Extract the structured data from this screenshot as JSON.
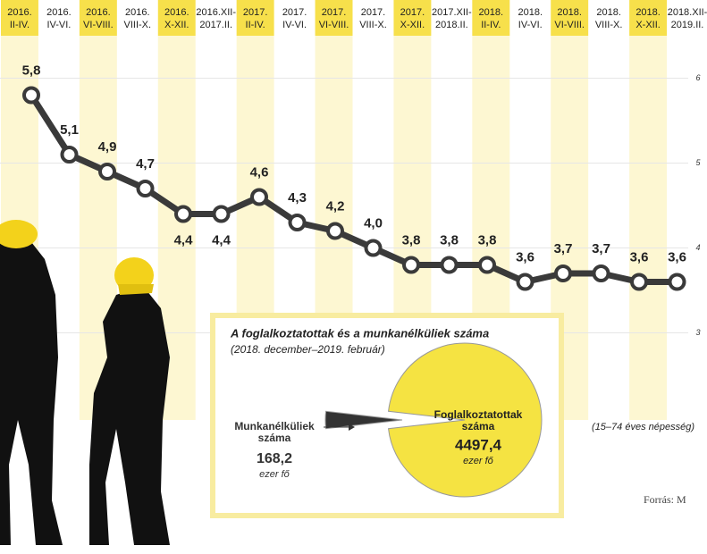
{
  "chart_data": [
    {
      "type": "line",
      "categories": [
        "2016. II-IV.",
        "2016. IV-VI.",
        "2016. VI-VIII.",
        "2016. VIII-X.",
        "2016. X-XII.",
        "2016.XII- 2017.II.",
        "2017. II-IV.",
        "2017. IV-VI.",
        "2017. VI-VIII.",
        "2017. VIII-X.",
        "2017. X-XII.",
        "2017.XII- 2018.II.",
        "2018. II-IV.",
        "2018. IV-VI.",
        "2018. VI-VIII.",
        "2018. VIII-X.",
        "2018. X-XII.",
        "2018.XII- 2019.II."
      ],
      "values": [
        5.8,
        5.1,
        4.9,
        4.7,
        4.4,
        4.4,
        4.6,
        4.3,
        4.2,
        4.0,
        3.8,
        3.8,
        3.8,
        3.6,
        3.7,
        3.7,
        3.6,
        3.6
      ],
      "value_labels": [
        "5,8",
        "5,1",
        "4,9",
        "4,7",
        "4,4",
        "4,4",
        "4,6",
        "4,3",
        "4,2",
        "4,0",
        "3,8",
        "3,8",
        "3,8",
        "3,6",
        "3,7",
        "3,7",
        "3,6",
        "3,6"
      ],
      "color": "#3a3a3a",
      "ylim": [
        2,
        6.5
      ],
      "yticks": [
        3,
        4,
        5,
        6
      ],
      "grid": true,
      "note": "(15–74 éves népesség)",
      "source": "Forrás: M"
    },
    {
      "type": "pie",
      "title": "A foglalkoztatottak és a munkanélküliek száma",
      "subtitle": "(2018. december–2019. február)",
      "categories": [
        "Munkanélküliek száma",
        "Foglalkoztatottak száma"
      ],
      "values": [
        168.2,
        4497.4
      ],
      "value_labels": [
        "168,2",
        "4497,4"
      ],
      "colors": [
        "#333333",
        "#f5e342"
      ],
      "unit": "ezer fő"
    }
  ]
}
